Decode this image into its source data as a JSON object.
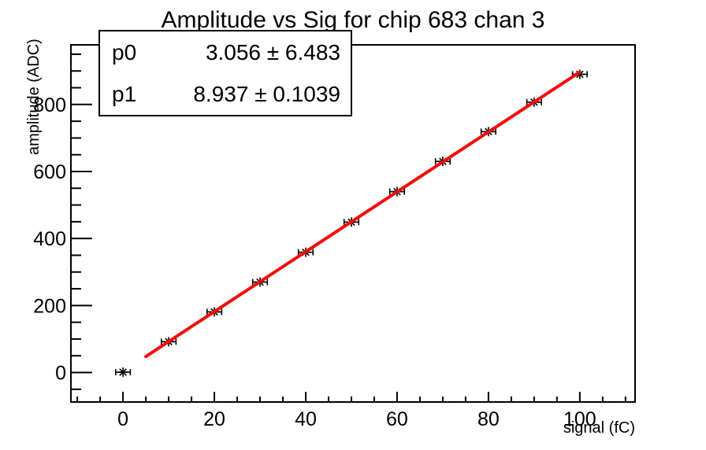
{
  "title": "Amplitude vs Sig for chip 683 chan 3",
  "stats_box": {
    "rows": [
      {
        "param": "p0",
        "value": "3.056 ± 6.483"
      },
      {
        "param": "p1",
        "value": "8.937 ± 0.1039"
      }
    ]
  },
  "colors": {
    "background": "#ffffff",
    "axis": "#000000",
    "marker": "#000000",
    "fit_line": "#f20c0c"
  },
  "chart_data": {
    "type": "scatter",
    "title": "Amplitude vs Sig for chip 683 chan 3",
    "xlabel": "signal (fC)",
    "ylabel": "amplitude (ADC)",
    "x": [
      0,
      10,
      20,
      30,
      40,
      50,
      60,
      70,
      80,
      90,
      100
    ],
    "y": [
      1,
      92,
      181,
      270,
      359,
      449,
      540,
      630,
      719,
      807,
      890
    ],
    "x_error": 1.6,
    "marker": "asterisk",
    "xlim": [
      -11.4,
      112.1
    ],
    "ylim": [
      -88,
      978
    ],
    "x_major_ticks": [
      0,
      20,
      40,
      60,
      80,
      100
    ],
    "x_minor_step": 5,
    "y_major_ticks": [
      0,
      200,
      400,
      600,
      800
    ],
    "y_minor_step": 50,
    "grid": false,
    "legend": "none",
    "fit": {
      "type": "linear",
      "p0": 3.056,
      "p0_err": 6.483,
      "p1": 8.937,
      "p1_err": 0.1039,
      "x_range": [
        5,
        100
      ],
      "color": "#f20c0c",
      "line_width": 4
    }
  }
}
